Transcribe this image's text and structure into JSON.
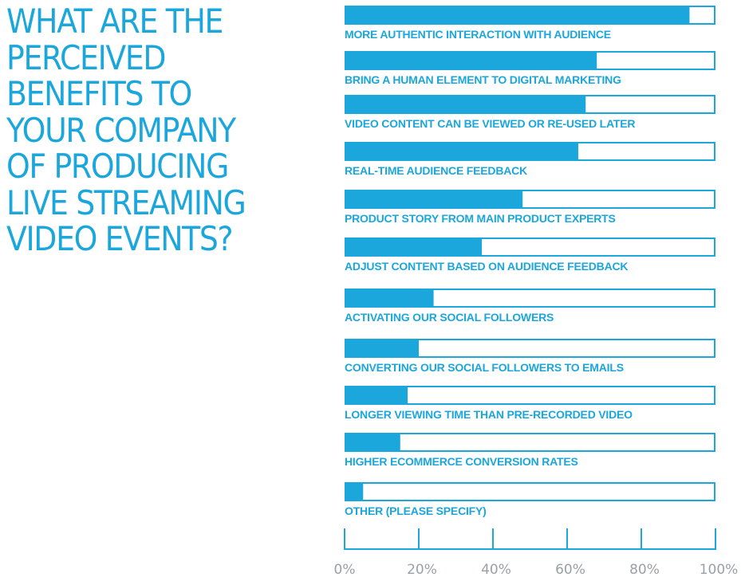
{
  "chart_data": {
    "type": "bar",
    "orientation": "horizontal",
    "title": "WHAT ARE THE PERCEIVED BENEFITS TO YOUR COMPANY OF PRODUCING LIVE STREAMING VIDEO EVENTS?",
    "title_lines": [
      "WHAT ARE THE",
      "PERCEIVED",
      "BENEFITS TO",
      "YOUR COMPANY",
      "OF PRODUCING",
      "LIVE STREAMING",
      "VIDEO EVENTS?"
    ],
    "categories": [
      "MORE AUTHENTIC INTERACTION WITH AUDIENCE",
      "BRING A HUMAN ELEMENT TO DIGITAL MARKETING",
      "VIDEO CONTENT CAN BE VIEWED OR RE-USED LATER",
      "REAL-TIME AUDIENCE FEEDBACK",
      "PRODUCT STORY FROM MAIN PRODUCT EXPERTS",
      "ADJUST CONTENT BASED ON AUDIENCE FEEDBACK",
      "ACTIVATING OUR SOCIAL FOLLOWERS",
      "CONVERTING OUR SOCIAL FOLLOWERS TO EMAILS",
      "LONGER VIEWING TIME THAN PRE-RECORDED VIDEO",
      "HIGHER ECOMMERCE CONVERSION RATES",
      "OTHER (PLEASE SPECIFY)"
    ],
    "values": [
      93,
      68,
      65,
      63,
      48,
      37,
      24,
      20,
      17,
      15,
      5
    ],
    "xlim": [
      0,
      100
    ],
    "x_ticks": [
      "0%",
      "20%",
      "40%",
      "60%",
      "80%",
      "100%"
    ],
    "colors": {
      "bar_fill": "#1ba6dc",
      "bar_outline": "#1ba6dc",
      "label": "#1ba6dc",
      "tick_label": "#9aa0a6",
      "title": "#1ba6dc"
    }
  }
}
